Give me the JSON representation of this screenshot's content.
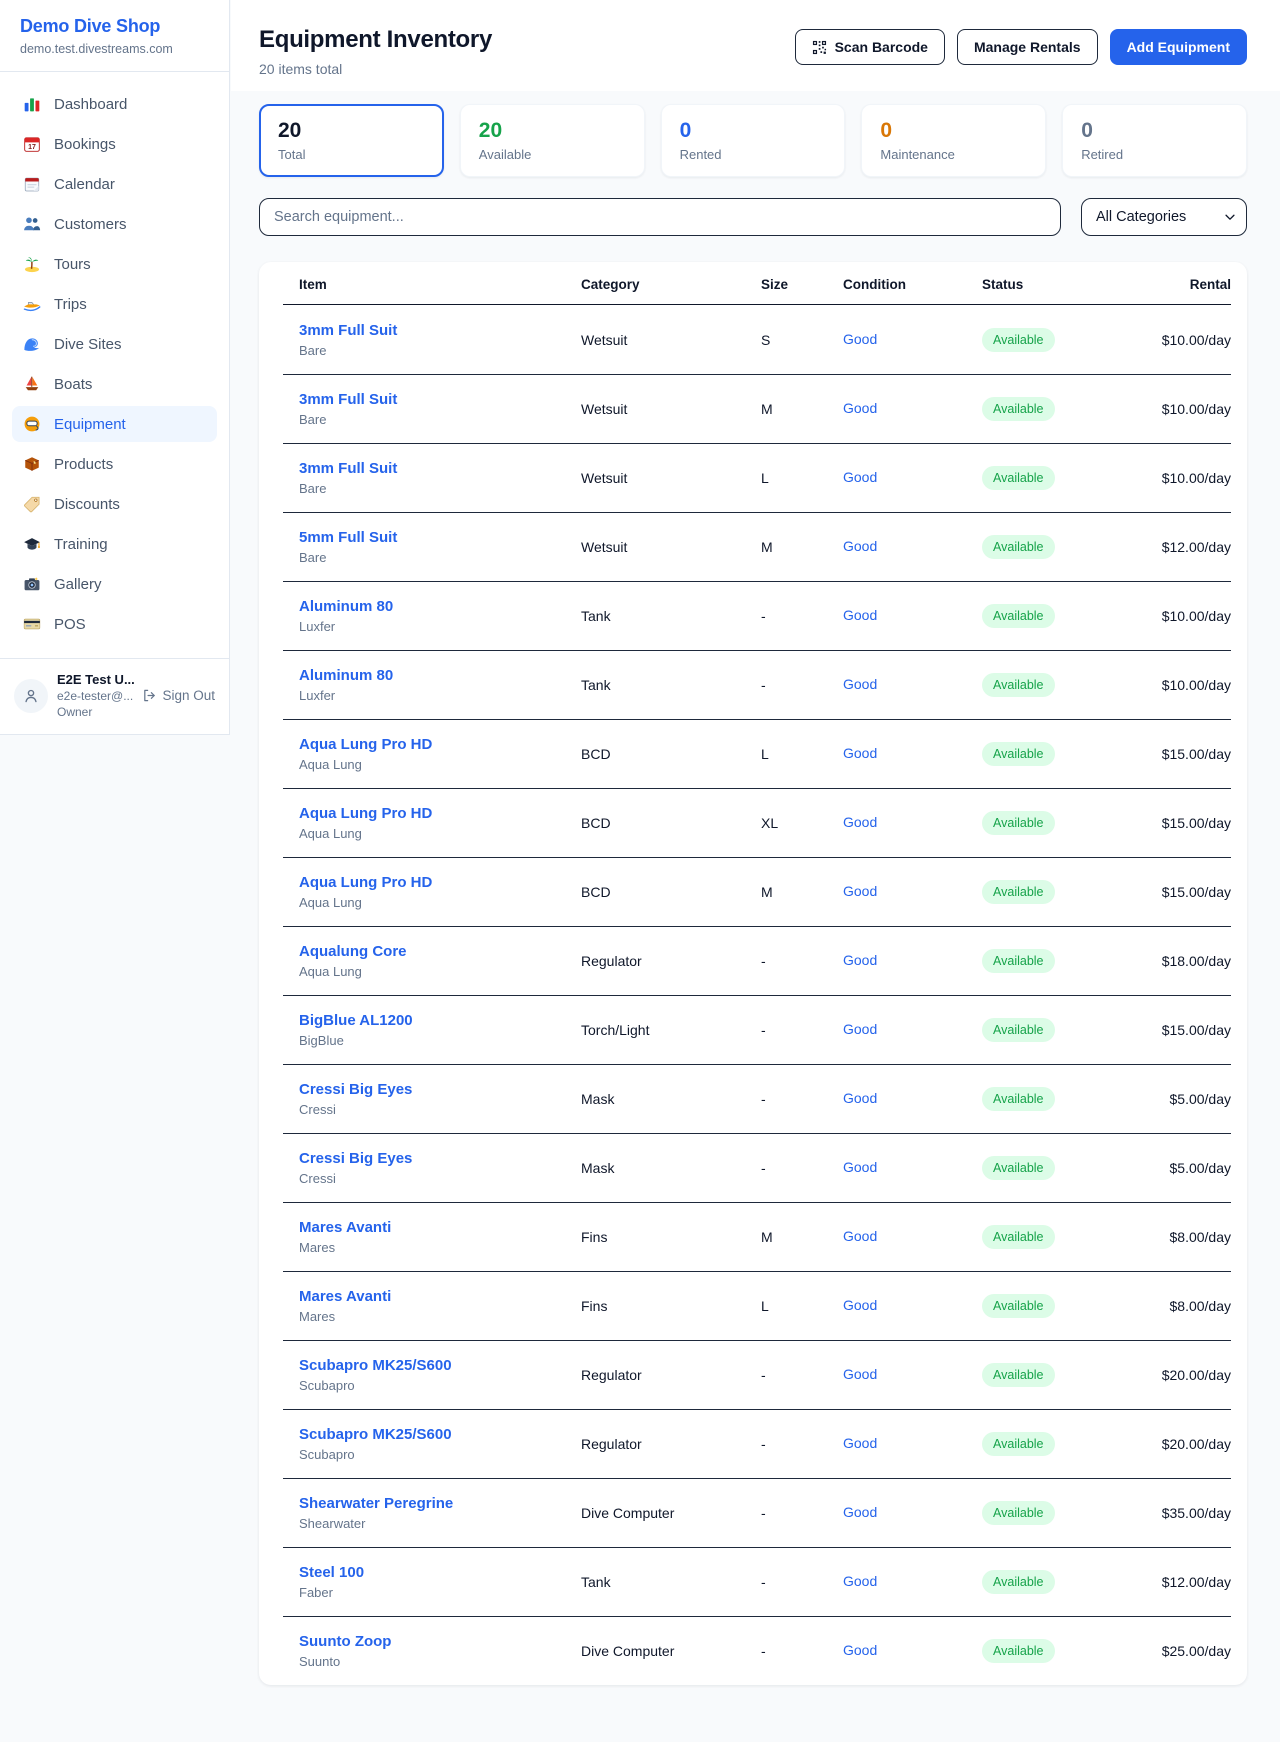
{
  "sidebar": {
    "brand": {
      "name": "Demo Dive Shop",
      "domain": "demo.test.divestreams.com"
    },
    "items": [
      {
        "icon": "bar-chart-icon",
        "label": "Dashboard",
        "active": false
      },
      {
        "icon": "calendar-date-icon",
        "label": "Bookings",
        "active": false
      },
      {
        "icon": "calendar-pad-icon",
        "label": "Calendar",
        "active": false
      },
      {
        "icon": "users-icon",
        "label": "Customers",
        "active": false
      },
      {
        "icon": "palm-island-icon",
        "label": "Tours",
        "active": false
      },
      {
        "icon": "speedboat-icon",
        "label": "Trips",
        "active": false
      },
      {
        "icon": "wave-icon",
        "label": "Dive Sites",
        "active": false
      },
      {
        "icon": "sailboat-icon",
        "label": "Boats",
        "active": false
      },
      {
        "icon": "dive-mask-icon",
        "label": "Equipment",
        "active": true
      },
      {
        "icon": "package-icon",
        "label": "Products",
        "active": false
      },
      {
        "icon": "tag-icon",
        "label": "Discounts",
        "active": false
      },
      {
        "icon": "grad-cap-icon",
        "label": "Training",
        "active": false
      },
      {
        "icon": "camera-icon",
        "label": "Gallery",
        "active": false
      },
      {
        "icon": "credit-card-icon",
        "label": "POS",
        "active": false
      }
    ],
    "user": {
      "name": "E2E Test U...",
      "email": "e2e-tester@...",
      "role": "Owner",
      "signout_label": "Sign Out"
    }
  },
  "header": {
    "title": "Equipment Inventory",
    "subtitle": "20 items total",
    "scan_barcode_label": "Scan Barcode",
    "manage_rentals_label": "Manage Rentals",
    "add_equipment_label": "Add Equipment"
  },
  "stats": [
    {
      "value": "20",
      "label": "Total",
      "color": "#0f172a",
      "selected": true
    },
    {
      "value": "20",
      "label": "Available",
      "color": "#16a34a",
      "selected": false
    },
    {
      "value": "0",
      "label": "Rented",
      "color": "#2563eb",
      "selected": false
    },
    {
      "value": "0",
      "label": "Maintenance",
      "color": "#d97706",
      "selected": false
    },
    {
      "value": "0",
      "label": "Retired",
      "color": "#64748b",
      "selected": false
    }
  ],
  "filters": {
    "search_placeholder": "Search equipment...",
    "search_value": "",
    "category_selected": "All Categories"
  },
  "table": {
    "columns": [
      "Item",
      "Category",
      "Size",
      "Condition",
      "Status",
      "Rental"
    ],
    "rows": [
      {
        "item": "3mm Full Suit",
        "brand": "Bare",
        "category": "Wetsuit",
        "size": "S",
        "condition": "Good",
        "status": "Available",
        "rental": "$10.00/day"
      },
      {
        "item": "3mm Full Suit",
        "brand": "Bare",
        "category": "Wetsuit",
        "size": "M",
        "condition": "Good",
        "status": "Available",
        "rental": "$10.00/day"
      },
      {
        "item": "3mm Full Suit",
        "brand": "Bare",
        "category": "Wetsuit",
        "size": "L",
        "condition": "Good",
        "status": "Available",
        "rental": "$10.00/day"
      },
      {
        "item": "5mm Full Suit",
        "brand": "Bare",
        "category": "Wetsuit",
        "size": "M",
        "condition": "Good",
        "status": "Available",
        "rental": "$12.00/day"
      },
      {
        "item": "Aluminum 80",
        "brand": "Luxfer",
        "category": "Tank",
        "size": "-",
        "condition": "Good",
        "status": "Available",
        "rental": "$10.00/day"
      },
      {
        "item": "Aluminum 80",
        "brand": "Luxfer",
        "category": "Tank",
        "size": "-",
        "condition": "Good",
        "status": "Available",
        "rental": "$10.00/day"
      },
      {
        "item": "Aqua Lung Pro HD",
        "brand": "Aqua Lung",
        "category": "BCD",
        "size": "L",
        "condition": "Good",
        "status": "Available",
        "rental": "$15.00/day"
      },
      {
        "item": "Aqua Lung Pro HD",
        "brand": "Aqua Lung",
        "category": "BCD",
        "size": "XL",
        "condition": "Good",
        "status": "Available",
        "rental": "$15.00/day"
      },
      {
        "item": "Aqua Lung Pro HD",
        "brand": "Aqua Lung",
        "category": "BCD",
        "size": "M",
        "condition": "Good",
        "status": "Available",
        "rental": "$15.00/day"
      },
      {
        "item": "Aqualung Core",
        "brand": "Aqua Lung",
        "category": "Regulator",
        "size": "-",
        "condition": "Good",
        "status": "Available",
        "rental": "$18.00/day"
      },
      {
        "item": "BigBlue AL1200",
        "brand": "BigBlue",
        "category": "Torch/Light",
        "size": "-",
        "condition": "Good",
        "status": "Available",
        "rental": "$15.00/day"
      },
      {
        "item": "Cressi Big Eyes",
        "brand": "Cressi",
        "category": "Mask",
        "size": "-",
        "condition": "Good",
        "status": "Available",
        "rental": "$5.00/day"
      },
      {
        "item": "Cressi Big Eyes",
        "brand": "Cressi",
        "category": "Mask",
        "size": "-",
        "condition": "Good",
        "status": "Available",
        "rental": "$5.00/day"
      },
      {
        "item": "Mares Avanti",
        "brand": "Mares",
        "category": "Fins",
        "size": "M",
        "condition": "Good",
        "status": "Available",
        "rental": "$8.00/day"
      },
      {
        "item": "Mares Avanti",
        "brand": "Mares",
        "category": "Fins",
        "size": "L",
        "condition": "Good",
        "status": "Available",
        "rental": "$8.00/day"
      },
      {
        "item": "Scubapro MK25/S600",
        "brand": "Scubapro",
        "category": "Regulator",
        "size": "-",
        "condition": "Good",
        "status": "Available",
        "rental": "$20.00/day"
      },
      {
        "item": "Scubapro MK25/S600",
        "brand": "Scubapro",
        "category": "Regulator",
        "size": "-",
        "condition": "Good",
        "status": "Available",
        "rental": "$20.00/day"
      },
      {
        "item": "Shearwater Peregrine",
        "brand": "Shearwater",
        "category": "Dive Computer",
        "size": "-",
        "condition": "Good",
        "status": "Available",
        "rental": "$35.00/day"
      },
      {
        "item": "Steel 100",
        "brand": "Faber",
        "category": "Tank",
        "size": "-",
        "condition": "Good",
        "status": "Available",
        "rental": "$12.00/day"
      },
      {
        "item": "Suunto Zoop",
        "brand": "Suunto",
        "category": "Dive Computer",
        "size": "-",
        "condition": "Good",
        "status": "Available",
        "rental": "$25.00/day"
      }
    ]
  },
  "colors": {
    "accent_blue": "#2563eb",
    "status_available_text": "#16a34a",
    "status_available_bg": "#dcfce7",
    "maintenance_orange": "#d97706",
    "retired_gray": "#64748b",
    "page_bg": "#f8fafc"
  }
}
